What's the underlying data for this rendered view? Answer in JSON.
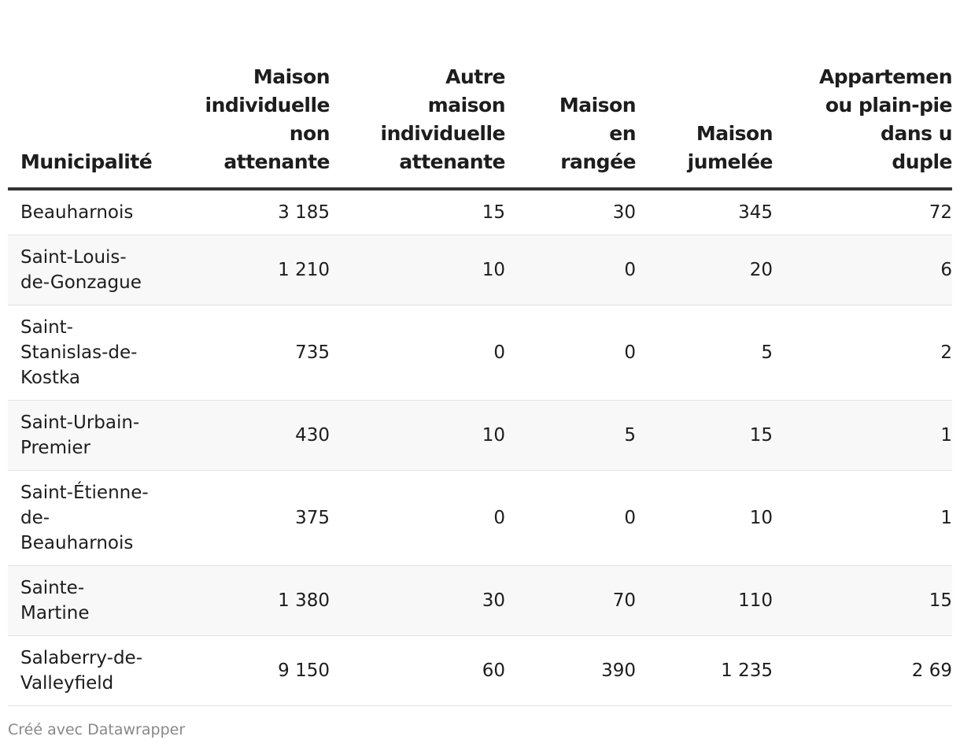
{
  "table": {
    "columns": [
      "Municipalité",
      "Maison\nindividuelle\nnon\nattenante",
      "Autre\nmaison\nindividuelle\nattenante",
      "Maison\nen\nrangée",
      "Maison\njumelée",
      "Appartemen\nou plain-pie\ndans u\nduple"
    ],
    "rows": [
      [
        "Beauharnois",
        "3 185",
        "15",
        "30",
        "345",
        "72"
      ],
      [
        "Saint-Louis-de-Gonzague",
        "1 210",
        "10",
        "0",
        "20",
        "6"
      ],
      [
        "Saint-Stanislas-de-Kostka",
        "735",
        "0",
        "0",
        "5",
        "2"
      ],
      [
        "Saint-Urbain-Premier",
        "430",
        "10",
        "5",
        "15",
        "1"
      ],
      [
        "Saint-Étienne-de-Beauharnois",
        "375",
        "0",
        "0",
        "10",
        "1"
      ],
      [
        "Sainte-Martine",
        "1 380",
        "30",
        "70",
        "110",
        "15"
      ],
      [
        "Salaberry-de-Valleyfield",
        "9 150",
        "60",
        "390",
        "1 235",
        "2 69"
      ]
    ]
  },
  "footer": "Créé avec Datawrapper"
}
